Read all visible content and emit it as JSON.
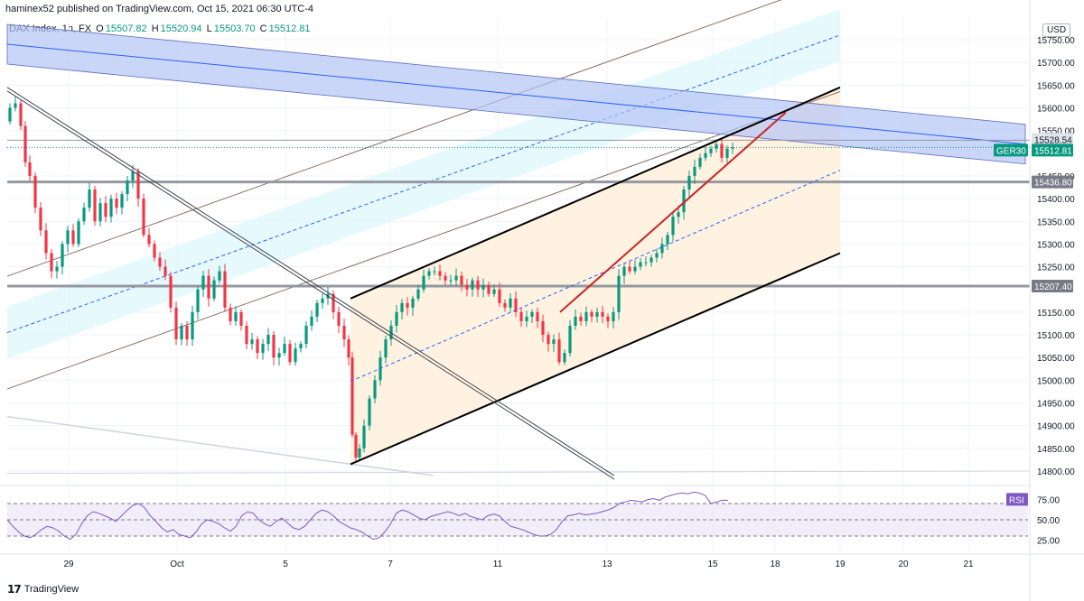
{
  "header": {
    "publisher": "haminex52 published on TradingView.com, Oct 15, 2021 06:30 UTC-4",
    "symbol": "DAX Index, 1h, FX",
    "open_label": "O",
    "open": "15507.82",
    "high_label": "H",
    "high": "15520.94",
    "low_label": "L",
    "low": "15503.70",
    "close_label": "C",
    "close": "15512.81",
    "currency": "USD"
  },
  "footer": {
    "brand": "TradingView"
  },
  "colors": {
    "bull": "#089981",
    "bear": "#f23645",
    "rsi": "#7e57c2",
    "channel_fill": "#fff0dc",
    "blue_band": "#b3c5f5",
    "cyan_band": "#e0f7fc",
    "label_bg": "#089981"
  },
  "chart_data": [
    {
      "type": "candlestick",
      "symbol": "GER30",
      "timeframe": "1h",
      "ylim": [
        14775,
        15800
      ],
      "y_ticks": [
        "15750.00",
        "15700.00",
        "15650.00",
        "15600.00",
        "15550.00",
        "15450.00",
        "15400.00",
        "15350.00",
        "15300.00",
        "15250.00",
        "15150.00",
        "15100.00",
        "15050.00",
        "15000.00",
        "14950.00",
        "14900.00",
        "14850.00",
        "14800.00"
      ],
      "x_ticks": [
        "29",
        "Oct",
        "5",
        "7",
        "11",
        "13",
        "15",
        "18",
        "19",
        "20",
        "21"
      ],
      "price_labels": [
        {
          "text": "15528.54",
          "value": 15528.54
        },
        {
          "text": "GER30",
          "value": 15512.81
        },
        {
          "text": "15512.81",
          "value": 15512.81
        },
        {
          "text": "15436.80",
          "value": 15436.8
        },
        {
          "text": "15207.40",
          "value": 15207.4
        }
      ],
      "horizontal_levels": [
        15436.8,
        15207.4
      ],
      "price_path": [
        [
          0,
          15570
        ],
        [
          6,
          15600
        ],
        [
          12,
          15610
        ],
        [
          18,
          15560
        ],
        [
          22,
          15480
        ],
        [
          28,
          15450
        ],
        [
          34,
          15380
        ],
        [
          40,
          15330
        ],
        [
          46,
          15280
        ],
        [
          52,
          15240
        ],
        [
          58,
          15250
        ],
        [
          64,
          15300
        ],
        [
          70,
          15330
        ],
        [
          76,
          15300
        ],
        [
          82,
          15350
        ],
        [
          88,
          15380
        ],
        [
          94,
          15420
        ],
        [
          100,
          15350
        ],
        [
          106,
          15390
        ],
        [
          112,
          15360
        ],
        [
          118,
          15400
        ],
        [
          124,
          15380
        ],
        [
          130,
          15410
        ],
        [
          136,
          15440
        ],
        [
          142,
          15460
        ],
        [
          148,
          15400
        ],
        [
          154,
          15320
        ],
        [
          160,
          15300
        ],
        [
          166,
          15270
        ],
        [
          172,
          15250
        ],
        [
          178,
          15230
        ],
        [
          184,
          15160
        ],
        [
          190,
          15090
        ],
        [
          196,
          15120
        ],
        [
          202,
          15090
        ],
        [
          208,
          15150
        ],
        [
          214,
          15200
        ],
        [
          220,
          15230
        ],
        [
          226,
          15180
        ],
        [
          232,
          15220
        ],
        [
          238,
          15240
        ],
        [
          244,
          15160
        ],
        [
          250,
          15130
        ],
        [
          256,
          15150
        ],
        [
          262,
          15120
        ],
        [
          268,
          15080
        ],
        [
          274,
          15090
        ],
        [
          280,
          15060
        ],
        [
          286,
          15080
        ],
        [
          292,
          15100
        ],
        [
          298,
          15050
        ],
        [
          304,
          15060
        ],
        [
          310,
          15080
        ],
        [
          316,
          15040
        ],
        [
          322,
          15070
        ],
        [
          328,
          15080
        ],
        [
          334,
          15120
        ],
        [
          340,
          15140
        ],
        [
          346,
          15170
        ],
        [
          352,
          15180
        ],
        [
          358,
          15190
        ],
        [
          364,
          15150
        ],
        [
          370,
          15120
        ],
        [
          376,
          15090
        ],
        [
          380,
          15050
        ],
        [
          384,
          14880
        ],
        [
          388,
          14830
        ],
        [
          392,
          14850
        ],
        [
          398,
          14900
        ],
        [
          404,
          14960
        ],
        [
          410,
          15000
        ],
        [
          416,
          15050
        ],
        [
          422,
          15090
        ],
        [
          428,
          15120
        ],
        [
          434,
          15150
        ],
        [
          440,
          15170
        ],
        [
          446,
          15160
        ],
        [
          452,
          15180
        ],
        [
          458,
          15200
        ],
        [
          464,
          15230
        ],
        [
          470,
          15240
        ],
        [
          476,
          15240
        ],
        [
          482,
          15230
        ],
        [
          488,
          15220
        ],
        [
          494,
          15220
        ],
        [
          500,
          15230
        ],
        [
          506,
          15210
        ],
        [
          512,
          15200
        ],
        [
          518,
          15220
        ],
        [
          524,
          15200
        ],
        [
          530,
          15210
        ],
        [
          536,
          15190
        ],
        [
          542,
          15200
        ],
        [
          548,
          15170
        ],
        [
          554,
          15160
        ],
        [
          560,
          15180
        ],
        [
          566,
          15150
        ],
        [
          572,
          15130
        ],
        [
          578,
          15140
        ],
        [
          584,
          15150
        ],
        [
          590,
          15130
        ],
        [
          596,
          15100
        ],
        [
          602,
          15080
        ],
        [
          608,
          15090
        ],
        [
          614,
          15040
        ],
        [
          620,
          15060
        ],
        [
          626,
          15120
        ],
        [
          632,
          15140
        ],
        [
          638,
          15130
        ],
        [
          644,
          15150
        ],
        [
          650,
          15140
        ],
        [
          656,
          15150
        ],
        [
          662,
          15140
        ],
        [
          668,
          15130
        ],
        [
          674,
          15150
        ],
        [
          680,
          15230
        ],
        [
          686,
          15250
        ],
        [
          692,
          15240
        ],
        [
          698,
          15250
        ],
        [
          704,
          15260
        ],
        [
          710,
          15260
        ],
        [
          716,
          15270
        ],
        [
          722,
          15280
        ],
        [
          728,
          15300
        ],
        [
          734,
          15320
        ],
        [
          740,
          15360
        ],
        [
          746,
          15370
        ],
        [
          752,
          15420
        ],
        [
          758,
          15450
        ],
        [
          764,
          15470
        ],
        [
          770,
          15490
        ],
        [
          776,
          15500
        ],
        [
          782,
          15510
        ],
        [
          788,
          15520
        ],
        [
          794,
          15490
        ],
        [
          800,
          15510
        ],
        [
          806,
          15513
        ]
      ],
      "annotations": [
        {
          "kind": "blue_band",
          "p1": [
            8,
            15740
          ],
          "p2": [
            1135,
            15520
          ],
          "width": 44
        },
        {
          "kind": "cyan_channel",
          "p1": [
            8,
            15105
          ],
          "p2": [
            930,
            15760
          ],
          "width": 125
        },
        {
          "kind": "orange_channel",
          "lower": [
            [
              388,
              14815
            ],
            [
              930,
              15280
            ]
          ],
          "upper": [
            [
              388,
              15180
            ],
            [
              930,
              15645
            ]
          ],
          "top_right": 930
        },
        {
          "kind": "red_line",
          "p1": [
            620,
            15150
          ],
          "p2": [
            870,
            15590
          ]
        },
        {
          "kind": "double_trendline",
          "p1": [
            8,
            15645
          ],
          "p2": [
            680,
            14790
          ]
        },
        {
          "kind": "grey_line",
          "p1": [
            8,
            14920
          ],
          "p2": [
            480,
            14790
          ]
        }
      ]
    },
    {
      "type": "line",
      "name": "RSI",
      "ylim": [
        10,
        90
      ],
      "y_ticks": [
        "75.00",
        "50.00",
        "25.00"
      ],
      "levels": [
        70,
        50,
        30
      ],
      "values": [
        50,
        42,
        35,
        30,
        28,
        32,
        38,
        42,
        40,
        36,
        30,
        26,
        32,
        45,
        55,
        60,
        58,
        55,
        52,
        48,
        55,
        62,
        68,
        70,
        65,
        55,
        48,
        40,
        35,
        38,
        32,
        30,
        28,
        35,
        45,
        50,
        48,
        45,
        40,
        36,
        42,
        55,
        60,
        58,
        50,
        45,
        42,
        48,
        52,
        46,
        40,
        38,
        42,
        50,
        58,
        62,
        60,
        55,
        48,
        44,
        40,
        38,
        35,
        30,
        26,
        28,
        35,
        45,
        58,
        62,
        60,
        56,
        52,
        50,
        54,
        56,
        58,
        60,
        58,
        55,
        58,
        54,
        52,
        50,
        55,
        57,
        55,
        48,
        42,
        40,
        38,
        35,
        32,
        30,
        30,
        32,
        38,
        48,
        55,
        56,
        58,
        56,
        57,
        58,
        60,
        62,
        65,
        70,
        72,
        74,
        73,
        72,
        75,
        76,
        74,
        78,
        80,
        82,
        83,
        82,
        84,
        83,
        80,
        70,
        72,
        74,
        74
      ]
    }
  ]
}
